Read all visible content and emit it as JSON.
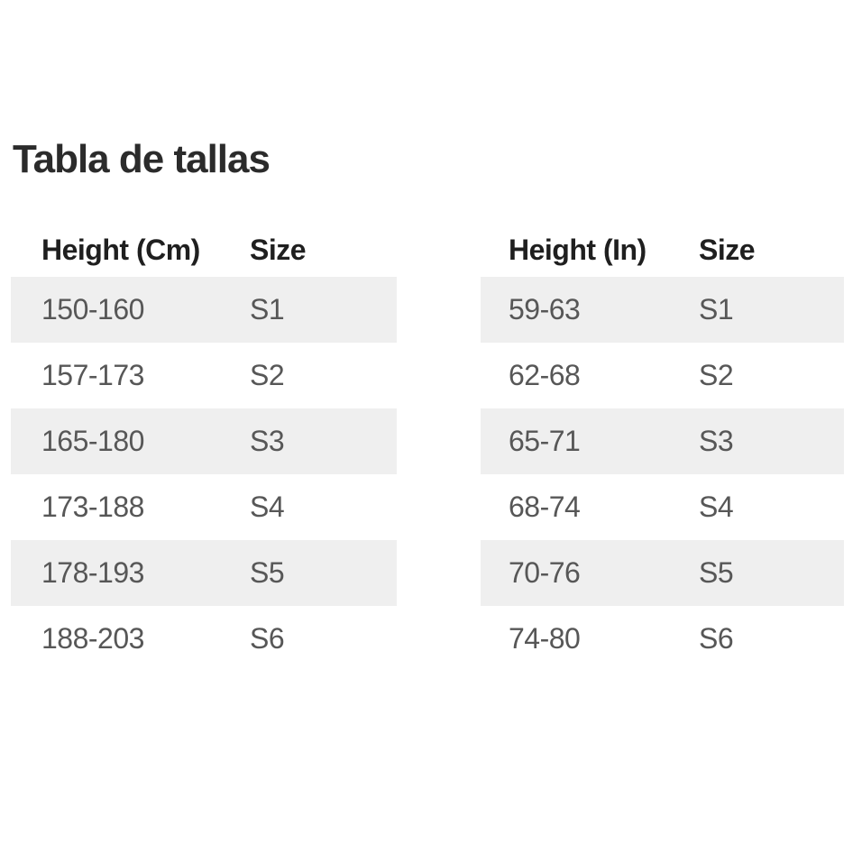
{
  "page": {
    "title": "Tabla de tallas"
  },
  "colors": {
    "row_stripe": "#efefef",
    "title_text": "#2b2b2b",
    "header_text": "#1f1f1f",
    "cell_text": "#575757",
    "page_background": "#ffffff"
  },
  "tables": [
    {
      "id": "cm",
      "columns": [
        "Height (Cm)",
        "Size"
      ],
      "rows": [
        {
          "height": "150-160",
          "size": "S1"
        },
        {
          "height": "157-173",
          "size": "S2"
        },
        {
          "height": "165-180",
          "size": "S3"
        },
        {
          "height": "173-188",
          "size": "S4"
        },
        {
          "height": "178-193",
          "size": "S5"
        },
        {
          "height": "188-203",
          "size": "S6"
        }
      ]
    },
    {
      "id": "in",
      "columns": [
        "Height (In)",
        "Size"
      ],
      "rows": [
        {
          "height": "59-63",
          "size": "S1"
        },
        {
          "height": "62-68",
          "size": "S2"
        },
        {
          "height": "65-71",
          "size": "S3"
        },
        {
          "height": "68-74",
          "size": "S4"
        },
        {
          "height": "70-76",
          "size": "S5"
        },
        {
          "height": "74-80",
          "size": "S6"
        }
      ]
    }
  ]
}
